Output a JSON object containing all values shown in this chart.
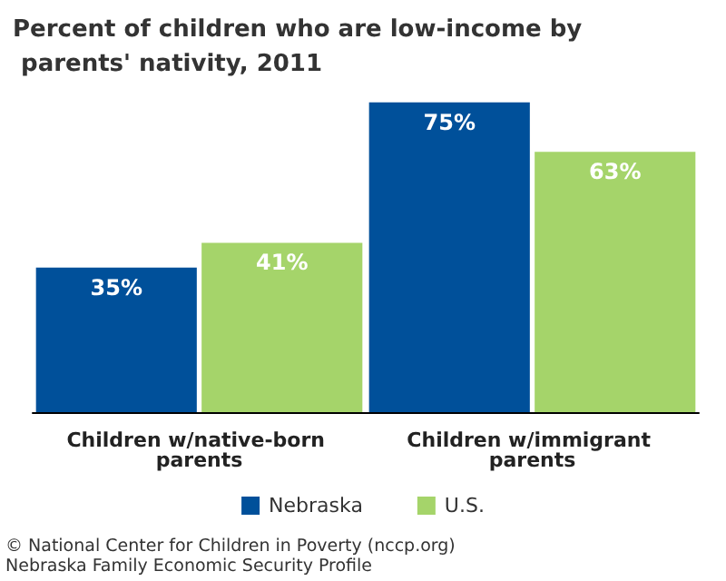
{
  "chart_data": {
    "type": "bar",
    "title": "Percent of children who are low-income by parents' nativity, 2011",
    "categories": [
      "Children w/native-born parents",
      "Children w/immigrant parents"
    ],
    "series": [
      {
        "name": "Nebraska",
        "color": "#00509a",
        "values": [
          35,
          75
        ],
        "value_labels": [
          "35%",
          "75%"
        ]
      },
      {
        "name": "U.S.",
        "color": "#a5d46a",
        "values": [
          41,
          63
        ],
        "value_labels": [
          "41%",
          "63%"
        ]
      }
    ],
    "legend": "bottom",
    "annotations": [
      "© National Center for Children in Poverty (nccp.org)",
      "Nebraska Family Economic Security Profile"
    ]
  }
}
